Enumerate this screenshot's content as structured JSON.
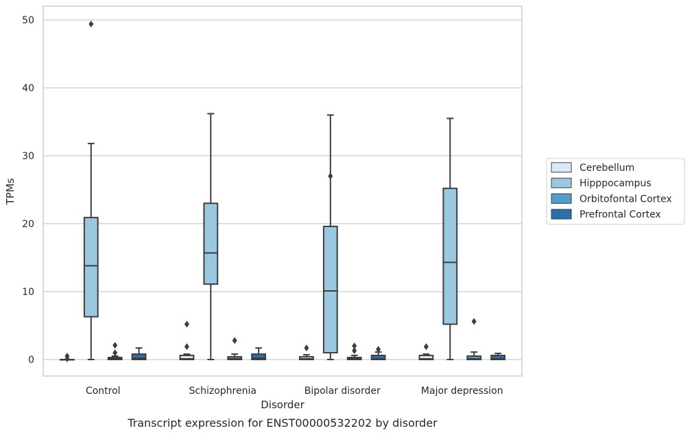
{
  "chart_data": {
    "type": "box",
    "title": "",
    "caption": "Transcript expression for ENST00000532202 by disorder",
    "xlabel": "Disorder",
    "ylabel": "TPMs",
    "ylim": [
      -2.4,
      52
    ],
    "yticks": [
      0,
      10,
      20,
      30,
      40,
      50
    ],
    "grid": "horizontal",
    "legend_position": "right",
    "categories": [
      "Control",
      "Schizophrenia",
      "Bipolar disorder",
      "Major depression"
    ],
    "series": [
      {
        "name": "Cerebellum",
        "color": "#dbe9f6",
        "boxes": [
          {
            "whislo": 0,
            "q1": 0,
            "med": 0,
            "q3": 0,
            "whishi": 0,
            "fliers": [
              0.1,
              0.5
            ]
          },
          {
            "whislo": 0,
            "q1": 0,
            "med": 0.1,
            "q3": 0.6,
            "whishi": 0.8,
            "fliers": [
              1.9,
              5.2
            ]
          },
          {
            "whislo": 0,
            "q1": 0,
            "med": 0.1,
            "q3": 0.4,
            "whishi": 0.7,
            "fliers": [
              1.7
            ]
          },
          {
            "whislo": 0,
            "q1": 0,
            "med": 0.1,
            "q3": 0.6,
            "whishi": 0.8,
            "fliers": [
              1.9
            ]
          }
        ]
      },
      {
        "name": "Hipppocampus",
        "color": "#9ac8e0",
        "boxes": [
          {
            "whislo": 0,
            "q1": 6.3,
            "med": 13.8,
            "q3": 20.9,
            "whishi": 31.8,
            "fliers": [
              49.4
            ]
          },
          {
            "whislo": 0,
            "q1": 11.1,
            "med": 15.7,
            "q3": 23.0,
            "whishi": 36.2,
            "fliers": []
          },
          {
            "whislo": 0,
            "q1": 1.0,
            "med": 10.1,
            "q3": 19.6,
            "whishi": 36.0,
            "fliers": [
              27.0
            ]
          },
          {
            "whislo": 0,
            "q1": 5.2,
            "med": 14.3,
            "q3": 25.2,
            "whishi": 35.5,
            "fliers": []
          }
        ]
      },
      {
        "name": "Orbitofontal Cortex",
        "color": "#529dcc",
        "boxes": [
          {
            "whislo": 0,
            "q1": 0,
            "med": 0.1,
            "q3": 0.3,
            "whishi": 0.5,
            "fliers": [
              1.0,
              2.1
            ]
          },
          {
            "whislo": 0,
            "q1": 0,
            "med": 0.1,
            "q3": 0.4,
            "whishi": 0.8,
            "fliers": [
              2.8
            ]
          },
          {
            "whislo": 0,
            "q1": 0,
            "med": 0.1,
            "q3": 0.3,
            "whishi": 0.6,
            "fliers": [
              1.3,
              2.0
            ]
          },
          {
            "whislo": 0,
            "q1": 0,
            "med": 0.1,
            "q3": 0.5,
            "whishi": 1.1,
            "fliers": [
              5.6
            ]
          }
        ]
      },
      {
        "name": "Prefrontal Cortex",
        "color": "#2a70b1",
        "boxes": [
          {
            "whislo": 0,
            "q1": 0,
            "med": 0.2,
            "q3": 0.8,
            "whishi": 1.7,
            "fliers": []
          },
          {
            "whislo": 0,
            "q1": 0,
            "med": 0.2,
            "q3": 0.8,
            "whishi": 1.7,
            "fliers": []
          },
          {
            "whislo": 0,
            "q1": 0,
            "med": 0.1,
            "q3": 0.6,
            "whishi": 1.1,
            "fliers": [
              1.5
            ]
          },
          {
            "whislo": 0,
            "q1": 0,
            "med": 0.1,
            "q3": 0.6,
            "whishi": 0.9,
            "fliers": []
          }
        ]
      }
    ]
  }
}
